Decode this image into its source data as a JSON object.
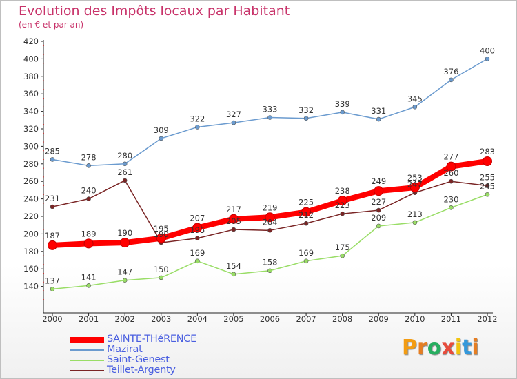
{
  "header": {
    "title": "Evolution des Impôts locaux par Habitant",
    "subtitle": "(en € et par an)"
  },
  "logo": {
    "text": "Proxiti",
    "letter_colors": [
      "#f39c12",
      "#e67e22",
      "#27ae60",
      "#e74c3c",
      "#f1c40f",
      "#3498db",
      "#e67e22"
    ]
  },
  "chart_data": {
    "type": "line",
    "x": [
      2000,
      2001,
      2002,
      2003,
      2004,
      2005,
      2006,
      2007,
      2008,
      2009,
      2010,
      2011,
      2012
    ],
    "ylim": [
      120,
      420
    ],
    "yticks": [
      140,
      160,
      180,
      200,
      220,
      240,
      260,
      280,
      300,
      320,
      340,
      360,
      380,
      400,
      420
    ],
    "grid": false,
    "legend_position": "bottom-left",
    "series": [
      {
        "name": "SAINTE-THéRENCE",
        "color": "#ff0000",
        "emphasis": true,
        "values": [
          187,
          189,
          190,
          195,
          207,
          217,
          219,
          225,
          238,
          249,
          253,
          277,
          283
        ]
      },
      {
        "name": "Mazirat",
        "color": "#6b9bcf",
        "emphasis": false,
        "values": [
          285,
          278,
          280,
          309,
          322,
          327,
          333,
          332,
          339,
          331,
          345,
          376,
          400
        ]
      },
      {
        "name": "Saint-Genest",
        "color": "#99dd66",
        "emphasis": false,
        "values": [
          137,
          141,
          147,
          150,
          169,
          154,
          158,
          169,
          175,
          209,
          213,
          230,
          245
        ]
      },
      {
        "name": "Teillet-Argenty",
        "color": "#7a2525",
        "emphasis": false,
        "values": [
          231,
          240,
          261,
          190,
          195,
          205,
          204,
          212,
          223,
          227,
          247,
          260,
          255
        ]
      }
    ]
  }
}
